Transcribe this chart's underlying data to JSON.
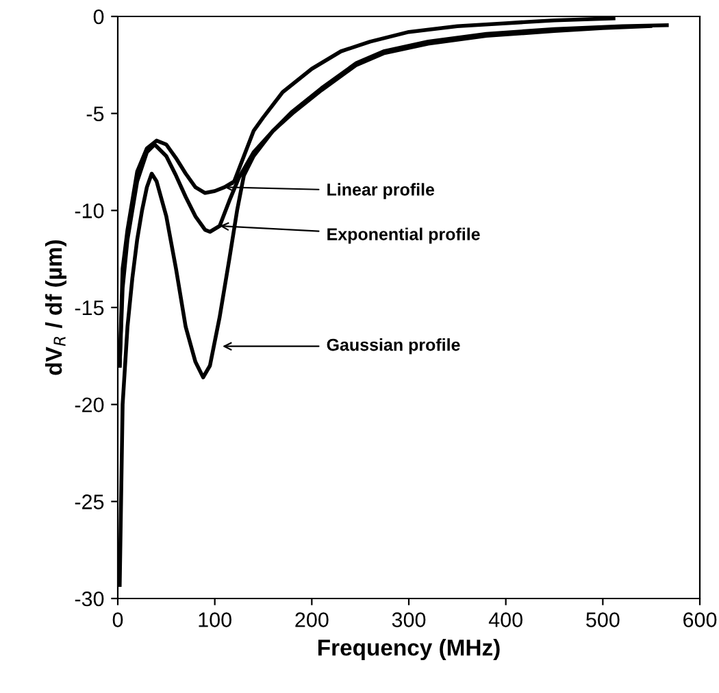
{
  "chart_data": {
    "type": "line",
    "xlabel": "Frequency (MHz)",
    "ylabel": "dV$_{R}$ / df (µm)",
    "xlim": [
      0,
      600
    ],
    "ylim": [
      -30,
      0
    ],
    "xticks": [
      0,
      100,
      200,
      300,
      400,
      500,
      600
    ],
    "yticks": [
      -30,
      -25,
      -20,
      -15,
      -10,
      -5,
      0
    ],
    "grid": false,
    "legend": false,
    "marker": "none",
    "line_style": "solid",
    "series": [
      {
        "color": "#000000",
        "x": [
          2,
          5,
          10,
          20,
          30,
          40,
          50,
          60,
          70,
          80,
          90,
          100,
          110,
          120,
          130,
          140,
          150,
          170,
          200,
          230,
          260,
          300,
          350,
          400,
          450,
          511
        ],
        "values": [
          -18,
          -13,
          -11,
          -8,
          -6.8,
          -6.4,
          -6.6,
          -7.3,
          -8.1,
          -8.8,
          -9.1,
          -9.0,
          -8.8,
          -8.5,
          -7.2,
          -5.9,
          -5.2,
          -3.9,
          -2.7,
          -1.8,
          -1.3,
          -0.8,
          -0.5,
          -0.35,
          -0.2,
          -0.1
        ]
      },
      {
        "color": "#000000",
        "x": [
          2,
          5,
          10,
          20,
          30,
          38,
          50,
          60,
          70,
          80,
          90,
          95,
          105,
          115,
          125,
          140,
          160,
          180,
          210,
          246,
          274,
          320,
          380,
          450,
          500,
          549
        ],
        "values": [
          -18,
          -14,
          -11.5,
          -8.5,
          -7,
          -6.6,
          -7.2,
          -8.2,
          -9.3,
          -10.3,
          -11,
          -11.1,
          -10.8,
          -9.5,
          -8.3,
          -7.0,
          -5.9,
          -5.0,
          -3.8,
          -2.5,
          -1.9,
          -1.4,
          -1.0,
          -0.75,
          -0.6,
          -0.5
        ]
      },
      {
        "color": "#000000",
        "x": [
          2,
          5,
          10,
          15,
          20,
          25,
          30,
          35,
          40,
          50,
          60,
          70,
          80,
          88,
          95,
          105,
          115,
          123,
          130,
          140,
          160,
          180,
          210,
          246,
          274,
          320,
          380,
          450,
          520,
          566
        ],
        "values": [
          -29.3,
          -20,
          -16,
          -13.5,
          -11.5,
          -10,
          -8.8,
          -8.1,
          -8.5,
          -10.3,
          -13,
          -16,
          -17.8,
          -18.6,
          -18.0,
          -15.5,
          -12.5,
          -10,
          -8.2,
          -7.2,
          -5.9,
          -4.9,
          -3.7,
          -2.4,
          -1.8,
          -1.3,
          -0.9,
          -0.65,
          -0.5,
          -0.45
        ]
      }
    ],
    "annotations": [
      {
        "text": "Linear profile",
        "x": 110,
        "y": -8.8
      },
      {
        "text": "Exponential profile",
        "x": 105,
        "y": -10.8
      },
      {
        "text": "Gaussian profile",
        "x": 108,
        "y": -17.0
      }
    ]
  }
}
